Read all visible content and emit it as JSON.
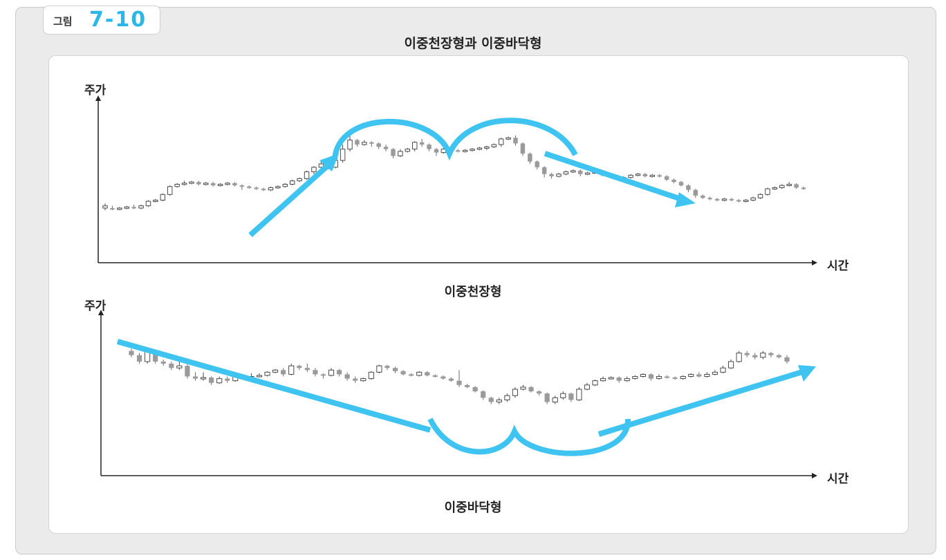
{
  "figure": {
    "prefix": "그림",
    "number": "7-10",
    "title": "이중천장형과  이중바닥형"
  },
  "colors": {
    "arrow": "#3fc3f0",
    "candle_hollow_stroke": "#4a4a4a",
    "candle_filled": "#9a9a9a",
    "axis": "#222222",
    "background_frame": "#ebebeb"
  },
  "chart_data": [
    {
      "type": "candlestick",
      "caption": "이중천장형",
      "ylabel": "주가",
      "xlabel": "시간",
      "ylim": [
        0,
        100
      ],
      "candles": [
        [
          38,
          36,
          40,
          34,
          1
        ],
        [
          36,
          35,
          38,
          34,
          0
        ],
        [
          35,
          36,
          37,
          34,
          1
        ],
        [
          36,
          37,
          38,
          35,
          1
        ],
        [
          37,
          36,
          39,
          35,
          0
        ],
        [
          36,
          38,
          39,
          35,
          1
        ],
        [
          38,
          42,
          43,
          37,
          1
        ],
        [
          42,
          43,
          44,
          41,
          1
        ],
        [
          43,
          48,
          49,
          42,
          1
        ],
        [
          48,
          55,
          56,
          47,
          1
        ],
        [
          55,
          57,
          58,
          54,
          1
        ],
        [
          57,
          58,
          60,
          56,
          1
        ],
        [
          58,
          59,
          60,
          57,
          1
        ],
        [
          59,
          57,
          60,
          56,
          0
        ],
        [
          57,
          58,
          59,
          56,
          1
        ],
        [
          58,
          56,
          59,
          55,
          0
        ],
        [
          56,
          57,
          58,
          55,
          1
        ],
        [
          57,
          58,
          59,
          56,
          1
        ],
        [
          58,
          56,
          59,
          55,
          0
        ],
        [
          56,
          55,
          57,
          52,
          0
        ],
        [
          55,
          54,
          56,
          53,
          0
        ],
        [
          54,
          53,
          55,
          52,
          0
        ],
        [
          53,
          52,
          54,
          51,
          0
        ],
        [
          52,
          54,
          55,
          51,
          1
        ],
        [
          54,
          55,
          56,
          53,
          1
        ],
        [
          55,
          57,
          58,
          54,
          1
        ],
        [
          57,
          60,
          61,
          56,
          1
        ],
        [
          60,
          62,
          63,
          59,
          1
        ],
        [
          62,
          68,
          69,
          61,
          1
        ],
        [
          68,
          72,
          73,
          66,
          1
        ],
        [
          72,
          75,
          77,
          70,
          1
        ],
        [
          75,
          72,
          76,
          70,
          0
        ],
        [
          72,
          78,
          79,
          71,
          1
        ],
        [
          78,
          88,
          92,
          76,
          1
        ],
        [
          88,
          96,
          100,
          86,
          1
        ],
        [
          96,
          92,
          97,
          90,
          0
        ],
        [
          92,
          94,
          96,
          91,
          1
        ],
        [
          94,
          93,
          95,
          90,
          0
        ],
        [
          93,
          90,
          94,
          88,
          0
        ],
        [
          90,
          88,
          92,
          86,
          0
        ],
        [
          88,
          82,
          89,
          80,
          0
        ],
        [
          82,
          86,
          88,
          81,
          1
        ],
        [
          86,
          88,
          89,
          85,
          1
        ],
        [
          88,
          94,
          95,
          86,
          1
        ],
        [
          94,
          92,
          97,
          90,
          0
        ],
        [
          92,
          88,
          93,
          86,
          0
        ],
        [
          88,
          85,
          89,
          82,
          0
        ],
        [
          85,
          88,
          89,
          84,
          1
        ],
        [
          88,
          87,
          89,
          86,
          0
        ],
        [
          87,
          86,
          88,
          85,
          0
        ],
        [
          86,
          87,
          88,
          85,
          1
        ],
        [
          87,
          88,
          89,
          86,
          1
        ],
        [
          88,
          89,
          90,
          87,
          1
        ],
        [
          89,
          90,
          91,
          87,
          1
        ],
        [
          90,
          92,
          93,
          89,
          1
        ],
        [
          92,
          97,
          98,
          90,
          1
        ],
        [
          97,
          98,
          99,
          96,
          1
        ],
        [
          98,
          93,
          100,
          91,
          0
        ],
        [
          93,
          84,
          94,
          82,
          0
        ],
        [
          84,
          77,
          85,
          75,
          0
        ],
        [
          77,
          72,
          78,
          70,
          0
        ],
        [
          72,
          66,
          73,
          63,
          0
        ],
        [
          66,
          64,
          67,
          62,
          0
        ],
        [
          64,
          66,
          67,
          63,
          1
        ],
        [
          66,
          68,
          69,
          65,
          1
        ],
        [
          68,
          69,
          70,
          67,
          1
        ],
        [
          69,
          66,
          70,
          64,
          0
        ],
        [
          66,
          67,
          68,
          65,
          1
        ],
        [
          67,
          68,
          69,
          66,
          1
        ],
        [
          68,
          65,
          69,
          64,
          0
        ],
        [
          65,
          64,
          66,
          63,
          0
        ],
        [
          64,
          62,
          65,
          61,
          0
        ],
        [
          62,
          63,
          64,
          61,
          1
        ],
        [
          63,
          65,
          66,
          62,
          1
        ],
        [
          65,
          66,
          67,
          64,
          1
        ],
        [
          66,
          64,
          67,
          63,
          0
        ],
        [
          64,
          65,
          66,
          63,
          1
        ],
        [
          65,
          64,
          66,
          63,
          0
        ],
        [
          64,
          61,
          65,
          60,
          0
        ],
        [
          61,
          59,
          62,
          58,
          0
        ],
        [
          59,
          56,
          60,
          55,
          0
        ],
        [
          56,
          52,
          57,
          50,
          0
        ],
        [
          52,
          47,
          53,
          45,
          0
        ],
        [
          47,
          45,
          48,
          44,
          0
        ],
        [
          45,
          44,
          46,
          43,
          0
        ],
        [
          44,
          43,
          45,
          42,
          0
        ],
        [
          43,
          44,
          45,
          42,
          1
        ],
        [
          44,
          43,
          45,
          42,
          0
        ],
        [
          43,
          42,
          44,
          41,
          0
        ],
        [
          42,
          43,
          44,
          41,
          1
        ],
        [
          43,
          45,
          46,
          42,
          1
        ],
        [
          45,
          48,
          49,
          44,
          1
        ],
        [
          48,
          53,
          54,
          47,
          1
        ],
        [
          53,
          54,
          55,
          52,
          1
        ],
        [
          54,
          56,
          57,
          53,
          1
        ],
        [
          56,
          57,
          59,
          55,
          1
        ],
        [
          57,
          54,
          58,
          53,
          0
        ],
        [
          54,
          53,
          55,
          52,
          0
        ]
      ]
    },
    {
      "type": "candlestick",
      "caption": "이중바닥형",
      "ylabel": "주가",
      "xlabel": "시간",
      "ylim": [
        0,
        100
      ],
      "candles": [
        [
          86,
          82,
          88,
          80,
          0
        ],
        [
          82,
          76,
          84,
          74,
          0
        ],
        [
          76,
          86,
          88,
          74,
          1
        ],
        [
          86,
          76,
          87,
          74,
          0
        ],
        [
          76,
          74,
          78,
          72,
          0
        ],
        [
          74,
          70,
          76,
          68,
          0
        ],
        [
          70,
          72,
          78,
          68,
          1
        ],
        [
          72,
          62,
          74,
          60,
          0
        ],
        [
          62,
          60,
          66,
          58,
          0
        ],
        [
          60,
          61,
          66,
          58,
          1
        ],
        [
          61,
          56,
          62,
          54,
          0
        ],
        [
          56,
          60,
          62,
          55,
          1
        ],
        [
          60,
          58,
          62,
          56,
          0
        ],
        [
          58,
          62,
          64,
          57,
          1
        ],
        [
          62,
          61,
          64,
          59,
          0
        ],
        [
          61,
          62,
          65,
          60,
          1
        ],
        [
          62,
          63,
          65,
          61,
          1
        ],
        [
          63,
          66,
          67,
          62,
          1
        ],
        [
          66,
          68,
          69,
          65,
          1
        ],
        [
          68,
          64,
          70,
          62,
          0
        ],
        [
          64,
          72,
          74,
          63,
          1
        ],
        [
          72,
          70,
          73,
          68,
          0
        ],
        [
          70,
          68,
          74,
          66,
          0
        ],
        [
          68,
          64,
          70,
          62,
          0
        ],
        [
          64,
          63,
          65,
          60,
          0
        ],
        [
          63,
          68,
          70,
          62,
          1
        ],
        [
          68,
          64,
          69,
          62,
          0
        ],
        [
          64,
          60,
          66,
          58,
          0
        ],
        [
          60,
          58,
          62,
          56,
          0
        ],
        [
          58,
          60,
          61,
          57,
          1
        ],
        [
          60,
          66,
          67,
          59,
          1
        ],
        [
          66,
          72,
          73,
          65,
          1
        ],
        [
          72,
          70,
          73,
          68,
          0
        ],
        [
          70,
          67,
          71,
          65,
          0
        ],
        [
          67,
          64,
          68,
          63,
          0
        ],
        [
          64,
          63,
          65,
          62,
          0
        ],
        [
          63,
          66,
          67,
          62,
          1
        ],
        [
          66,
          63,
          67,
          62,
          0
        ],
        [
          63,
          62,
          64,
          61,
          0
        ],
        [
          62,
          60,
          63,
          59,
          0
        ],
        [
          60,
          58,
          61,
          57,
          0
        ],
        [
          58,
          54,
          68,
          52,
          0
        ],
        [
          54,
          52,
          55,
          51,
          0
        ],
        [
          52,
          48,
          53,
          47,
          0
        ],
        [
          48,
          42,
          49,
          40,
          0
        ],
        [
          42,
          38,
          43,
          36,
          0
        ],
        [
          38,
          40,
          42,
          36,
          1
        ],
        [
          40,
          44,
          46,
          38,
          1
        ],
        [
          44,
          50,
          52,
          42,
          1
        ],
        [
          50,
          52,
          54,
          49,
          1
        ],
        [
          52,
          48,
          53,
          47,
          0
        ],
        [
          48,
          46,
          49,
          44,
          0
        ],
        [
          46,
          38,
          47,
          36,
          0
        ],
        [
          38,
          42,
          44,
          36,
          1
        ],
        [
          42,
          46,
          48,
          40,
          1
        ],
        [
          46,
          40,
          47,
          38,
          0
        ],
        [
          40,
          50,
          52,
          39,
          1
        ],
        [
          50,
          54,
          56,
          49,
          1
        ],
        [
          54,
          58,
          59,
          53,
          1
        ],
        [
          58,
          60,
          62,
          57,
          1
        ],
        [
          60,
          61,
          62,
          59,
          1
        ],
        [
          61,
          58,
          62,
          56,
          0
        ],
        [
          58,
          60,
          62,
          57,
          1
        ],
        [
          60,
          62,
          63,
          59,
          1
        ],
        [
          62,
          64,
          65,
          61,
          1
        ],
        [
          64,
          60,
          65,
          58,
          0
        ],
        [
          60,
          62,
          64,
          59,
          1
        ],
        [
          62,
          61,
          63,
          60,
          0
        ],
        [
          61,
          60,
          62,
          59,
          0
        ],
        [
          60,
          62,
          63,
          59,
          1
        ],
        [
          62,
          64,
          65,
          61,
          1
        ],
        [
          64,
          62,
          66,
          61,
          0
        ],
        [
          62,
          64,
          66,
          61,
          1
        ],
        [
          64,
          66,
          68,
          63,
          1
        ],
        [
          66,
          70,
          72,
          65,
          1
        ],
        [
          70,
          76,
          78,
          69,
          1
        ],
        [
          76,
          84,
          86,
          75,
          1
        ],
        [
          84,
          82,
          86,
          80,
          0
        ],
        [
          82,
          80,
          84,
          78,
          0
        ],
        [
          80,
          84,
          86,
          78,
          1
        ],
        [
          84,
          82,
          85,
          80,
          0
        ],
        [
          82,
          80,
          83,
          79,
          0
        ],
        [
          80,
          76,
          82,
          74,
          0
        ]
      ]
    }
  ],
  "annotations": {
    "top": "double top: arrow rising into two humps, then descending arrow",
    "bottom": "double bottom: descending arrow into two troughs, then rising arrow"
  }
}
